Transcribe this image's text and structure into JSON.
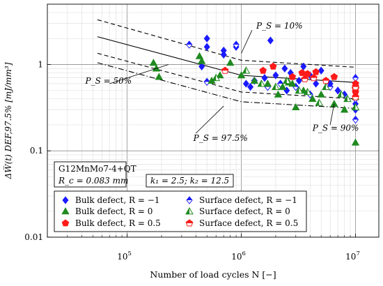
{
  "chart_data": {
    "type": "scatter",
    "title": "",
    "xlabel": "Number of load cycles N [−]",
    "ylabel": "ΔW̅(t) DEF,97.5% [mJ/mm³]",
    "x_scale": "log",
    "y_scale": "log",
    "xlim": [
      20000,
      16000000
    ],
    "ylim": [
      0.01,
      5
    ],
    "grid": true,
    "x_ticks": [
      {
        "value": 100000,
        "label": "10⁵",
        "base": "10",
        "exp": "5"
      },
      {
        "value": 1000000,
        "label": "10⁶",
        "base": "10",
        "exp": "6"
      },
      {
        "value": 10000000,
        "label": "10⁷",
        "base": "10",
        "exp": "7"
      }
    ],
    "y_ticks": [
      {
        "value": 0.01,
        "label": "0.01"
      },
      {
        "value": 0.1,
        "label": "0.1"
      },
      {
        "value": 1,
        "label": "1"
      }
    ],
    "info_box": {
      "line1": "G12MnMo7-4+QT",
      "line2": "R_c = 0.083 mm"
    },
    "k_box": "k₁ = 2.5;  k₂ = 12.5",
    "annotations": [
      {
        "text": "P_S = 10%",
        "x": 1350000,
        "y": 2.6
      },
      {
        "text": "P_S = 50%",
        "x": 43000,
        "y": 0.6
      },
      {
        "text": "P_S = 97.5%",
        "x": 380000,
        "y": 0.13
      },
      {
        "text": "P_S = 90%",
        "x": 4200000,
        "y": 0.17
      }
    ],
    "lines": [
      {
        "name": "P_S = 50%",
        "style": "solid",
        "x": [
          55000,
          1000000,
          10000000
        ],
        "y": [
          2.1,
          0.75,
          0.62
        ]
      },
      {
        "name": "P_S = 10%",
        "style": "dashed",
        "x": [
          55000,
          1000000,
          10000000
        ],
        "y": [
          3.3,
          1.12,
          0.93
        ]
      },
      {
        "name": "P_S = 90%",
        "style": "dashed",
        "x": [
          55000,
          1000000,
          10000000
        ],
        "y": [
          1.35,
          0.48,
          0.4
        ]
      },
      {
        "name": "P_S = 97.5%",
        "style": "dashdot",
        "x": [
          55000,
          1000000,
          10000000
        ],
        "y": [
          1.05,
          0.37,
          0.31
        ]
      }
    ],
    "series": [
      {
        "name": "Bulk defect, R = −1",
        "marker": "diamond",
        "fill": "full",
        "color": "#1a1aff",
        "x": [
          500000,
          500000,
          700000,
          700000,
          900000,
          1100000,
          1200000,
          1800000,
          2000000,
          2200000,
          2400000,
          2700000,
          3200000,
          3500000,
          4000000,
          5000000,
          6000000,
          7000000,
          8000000,
          10000000,
          10000000,
          10000000,
          10000000,
          450000,
          1600000,
          2500000,
          4500000
        ],
        "y": [
          2.0,
          1.6,
          1.45,
          1.3,
          1.6,
          0.6,
          0.55,
          1.9,
          0.75,
          0.6,
          0.9,
          0.8,
          0.65,
          0.95,
          0.75,
          0.85,
          0.6,
          0.5,
          0.45,
          0.55,
          0.5,
          0.35,
          0.3,
          0.95,
          0.7,
          0.5,
          0.6
        ]
      },
      {
        "name": "Surface defect, R = −1",
        "marker": "diamond",
        "fill": "half",
        "color": "#1a1aff",
        "x": [
          350000,
          500000,
          900000,
          1300000,
          1700000,
          2200000,
          3000000,
          4000000,
          6000000,
          10000000,
          10000000,
          10000000,
          10000000
        ],
        "y": [
          1.7,
          0.63,
          1.7,
          0.65,
          0.55,
          0.6,
          0.55,
          0.45,
          0.55,
          0.7,
          0.5,
          0.4,
          0.23
        ]
      },
      {
        "name": "Bulk defect, R = 0",
        "marker": "triangle",
        "fill": "full",
        "color": "#1f8a1f",
        "x": [
          170000,
          180000,
          190000,
          430000,
          450000,
          550000,
          650000,
          800000,
          1000000,
          1300000,
          1700000,
          2100000,
          2300000,
          2600000,
          2800000,
          3000000,
          3500000,
          4200000,
          5000000,
          6500000,
          8000000,
          10000000,
          10000000
        ],
        "y": [
          1.05,
          0.9,
          0.72,
          1.25,
          1.1,
          0.65,
          0.75,
          1.05,
          0.75,
          0.65,
          0.6,
          0.45,
          0.55,
          0.62,
          0.6,
          0.32,
          0.5,
          0.4,
          0.45,
          0.35,
          0.3,
          0.42,
          0.125
        ]
      },
      {
        "name": "Surface defect, R = 0",
        "marker": "triangle",
        "fill": "half",
        "color": "#1f8a1f",
        "x": [
          600000,
          1100000,
          1500000,
          2000000,
          2500000,
          3200000,
          3800000,
          4800000,
          5500000,
          7500000,
          8500000,
          10000000,
          10000000
        ],
        "y": [
          0.7,
          0.85,
          0.6,
          0.55,
          0.65,
          0.5,
          0.48,
          0.36,
          0.55,
          0.45,
          0.4,
          0.32,
          0.58
        ]
      },
      {
        "name": "Bulk defect, R = 0.5",
        "marker": "pentagon",
        "fill": "full",
        "color": "#ff1a1a",
        "x": [
          1550000,
          1900000,
          2800000,
          3400000,
          3800000,
          4500000,
          6500000,
          10000000,
          10000000,
          10000000
        ],
        "y": [
          0.85,
          0.95,
          0.72,
          0.8,
          0.78,
          0.82,
          0.72,
          0.6,
          0.52,
          0.48
        ]
      },
      {
        "name": "Surface defect, R = 0.5",
        "marker": "pentagon",
        "fill": "half",
        "color": "#ff1a1a",
        "x": [
          720000,
          3600000,
          4300000,
          5500000,
          10000000,
          10000000
        ],
        "y": [
          0.85,
          0.68,
          0.7,
          0.65,
          0.55,
          0.42
        ]
      }
    ],
    "legend": {
      "placement": "lower-left",
      "columns": 2
    }
  }
}
